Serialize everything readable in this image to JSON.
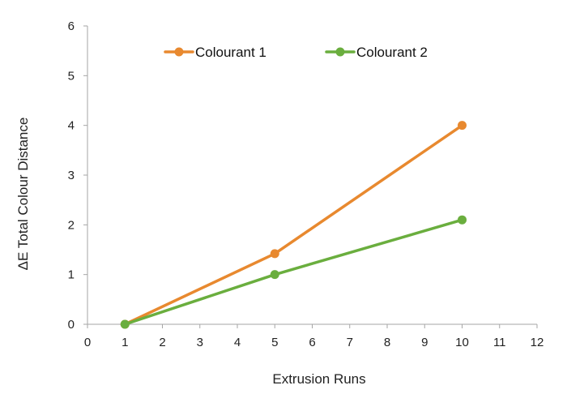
{
  "chart_data": {
    "type": "line",
    "title": "",
    "xlabel": "Extrusion Runs",
    "ylabel": "ΔE Total Colour Distance",
    "xlim": [
      0,
      12
    ],
    "ylim": [
      0,
      6
    ],
    "xticks": [
      "0",
      "1",
      "2",
      "3",
      "4",
      "5",
      "6",
      "7",
      "8",
      "9",
      "10",
      "11",
      "12"
    ],
    "yticks": [
      "0",
      "1",
      "2",
      "3",
      "4",
      "5",
      "6"
    ],
    "grid": false,
    "legend_position": "top",
    "series": [
      {
        "name": "Colourant 1",
        "color": "#E8892F",
        "x": [
          1,
          5,
          10
        ],
        "y": [
          0,
          1.42,
          4.0
        ]
      },
      {
        "name": "Colourant 2",
        "color": "#6AAE3E",
        "x": [
          1,
          5,
          10
        ],
        "y": [
          0,
          1.0,
          2.1
        ]
      }
    ]
  }
}
